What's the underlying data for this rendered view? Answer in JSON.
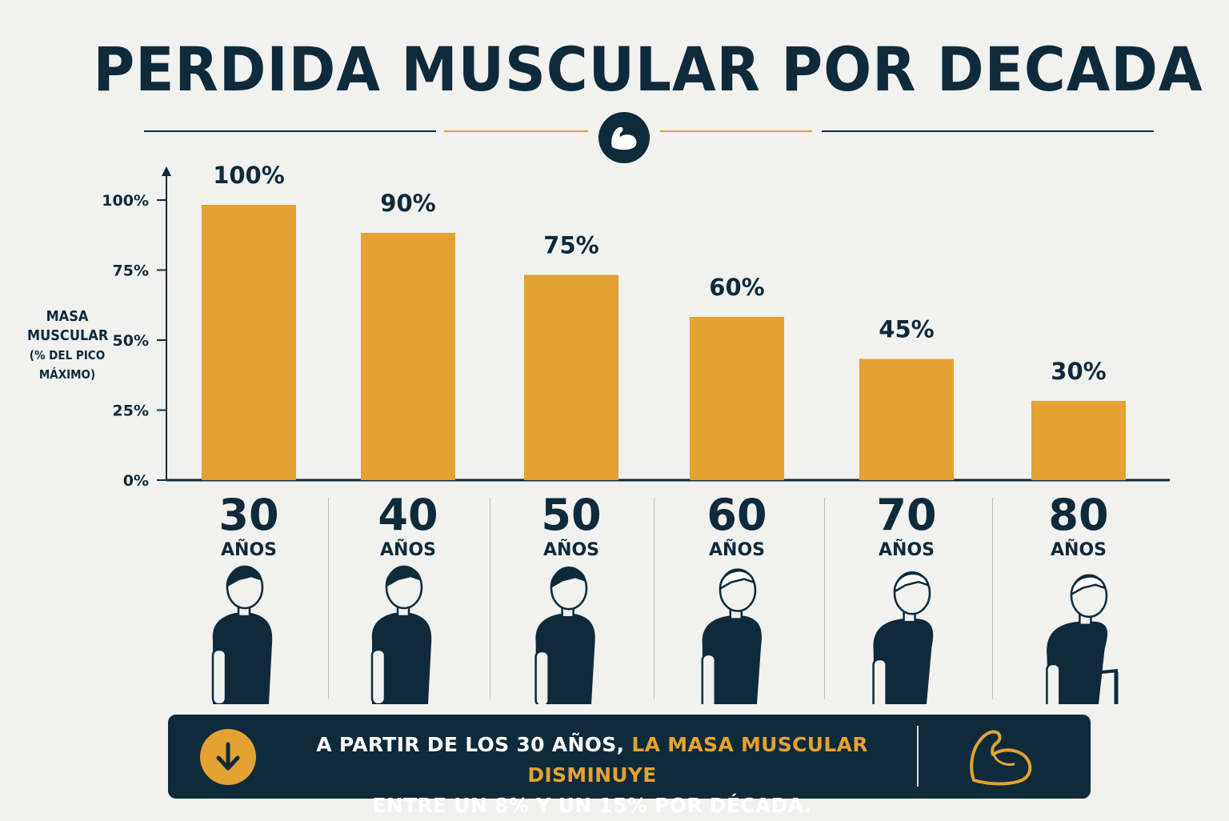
{
  "title": "PERDIDA MUSCULAR POR DECADA",
  "chart_data": {
    "type": "bar",
    "categories": [
      "30",
      "40",
      "50",
      "60",
      "70",
      "80"
    ],
    "category_unit": "AÑOS",
    "values": [
      100,
      90,
      75,
      60,
      45,
      30
    ],
    "data_labels": [
      "100%",
      "90%",
      "75%",
      "60%",
      "45%",
      "30%"
    ],
    "ylabel_line1": "MASA MUSCULAR",
    "ylabel_line2": "(% DEL PICO MÁXIMO)",
    "yticks": [
      0,
      25,
      50,
      75,
      100
    ],
    "ytick_labels": [
      "0%",
      "25%",
      "50%",
      "75%",
      "100%"
    ],
    "ylim": [
      0,
      100
    ],
    "grid": false,
    "bar_color": "#e3a232",
    "axis_color": "#0f2a3a"
  },
  "figures": [
    "silhouette-30-icon",
    "silhouette-40-icon",
    "silhouette-50-icon",
    "silhouette-60-icon",
    "silhouette-70-icon",
    "silhouette-80-icon"
  ],
  "banner": {
    "line1_a": "A PARTIR DE LOS 30 AÑOS, ",
    "line1_b": "LA MASA MUSCULAR DISMINUYE",
    "line2": "ENTRE UN 8% Y UN 15% POR DÉCADA.",
    "arrow_icon": "arrow-down-icon",
    "muscle_icon": "flexed-arm-icon"
  },
  "colors": {
    "navy": "#0f2a3a",
    "gold": "#e3a232",
    "background": "#f1f1ef"
  }
}
